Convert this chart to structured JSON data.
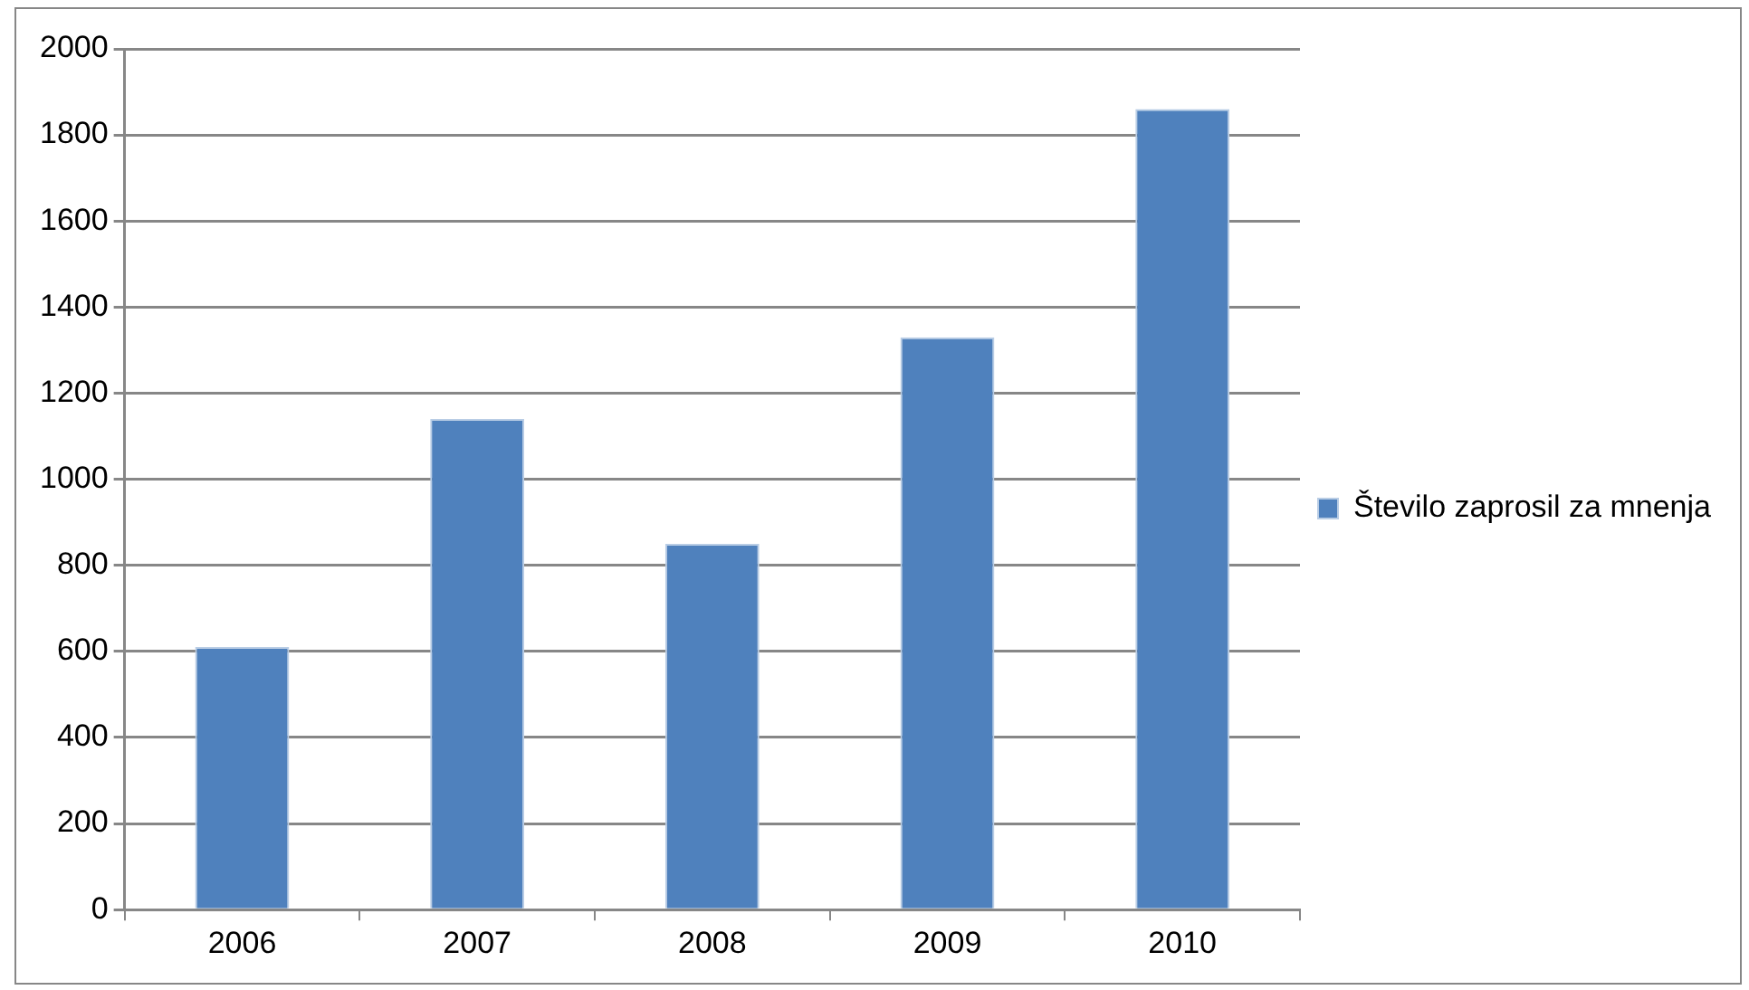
{
  "chart_data": {
    "type": "bar",
    "categories": [
      "2006",
      "2007",
      "2008",
      "2009",
      "2010"
    ],
    "series": [
      {
        "name": "Število zaprosil za mnenja",
        "color": "#4f81bd",
        "values": [
          610,
          1140,
          850,
          1330,
          1860
        ]
      }
    ],
    "ylim": [
      0,
      2000
    ],
    "yticks": [
      0,
      200,
      400,
      600,
      800,
      1000,
      1200,
      1400,
      1600,
      1800,
      2000
    ],
    "grid": "y",
    "legend": "right"
  }
}
